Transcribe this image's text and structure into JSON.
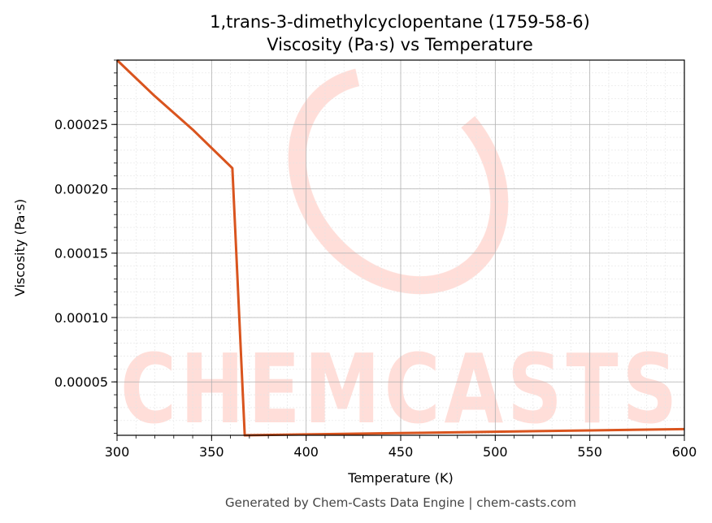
{
  "title_line1": "1,trans-3-dimethylcyclopentane (1759-58-6)",
  "title_line2": "Viscosity (Pa·s) vs Temperature",
  "footer": "Generated by Chem-Casts Data Engine | chem-casts.com",
  "watermark": "CHEMCASTS",
  "colors": {
    "line": "#d9541e",
    "grid_major": "#b0b0b0",
    "grid_minor": "#e4e4e4",
    "watermark": "#ffd9d2"
  },
  "chart_data": {
    "type": "line",
    "xlabel": "Temperature (K)",
    "ylabel": "Viscosity (Pa·s)",
    "xlim": [
      300,
      600
    ],
    "ylim": [
      8.5e-06,
      0.0003
    ],
    "xticks": [
      300,
      350,
      400,
      450,
      500,
      550,
      600
    ],
    "xtick_labels": [
      "300",
      "350",
      "400",
      "450",
      "500",
      "550",
      "600"
    ],
    "yticks": [
      5e-05,
      0.0001,
      0.00015,
      0.0002,
      0.00025
    ],
    "ytick_labels": [
      "0.00005",
      "0.00010",
      "0.00015",
      "0.00020",
      "0.00025"
    ],
    "grid": true,
    "series": [
      {
        "x": [
          300,
          320,
          340,
          361,
          367.5,
          400,
          450,
          500,
          550,
          600
        ],
        "y": [
          0.0003,
          0.000272,
          0.000246,
          0.000216,
          8.5e-06,
          9.2e-06,
          1.02e-05,
          1.13e-05,
          1.23e-05,
          1.33e-05
        ]
      }
    ]
  }
}
